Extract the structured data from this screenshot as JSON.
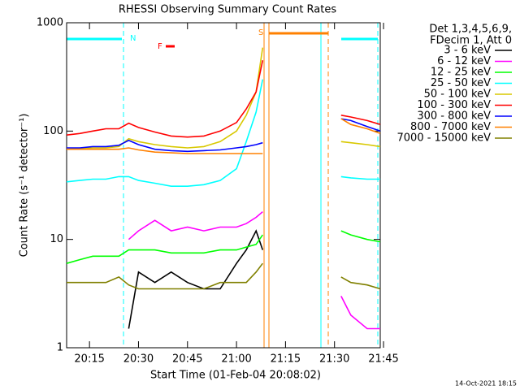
{
  "chart_data": {
    "type": "line",
    "title": "RHESSI Observing Summary Count Rates",
    "xlabel": "Start Time (01-Feb-04 20:08:02)",
    "ylabel": "Count Rate (s⁻¹ detector⁻¹)",
    "footer": "14-Oct-2021 18:15",
    "legend_title": [
      "Det 1,3,4,5,6,9,",
      "FDecim 1, Att 0"
    ],
    "annotations": [
      "N",
      "F",
      "S"
    ],
    "log_y": true,
    "xlim": [
      "20:08",
      "21:44"
    ],
    "xticks": [
      "20:15",
      "20:30",
      "20:45",
      "21:00",
      "21:15",
      "21:30",
      "21:45"
    ],
    "ylim": [
      1,
      1000
    ],
    "yticks": [
      1,
      10,
      100,
      1000
    ],
    "x": [
      "20:08",
      "20:12",
      "20:16",
      "20:20",
      "20:24",
      "20:27",
      "20:30",
      "20:35",
      "20:40",
      "20:45",
      "20:50",
      "20:55",
      "21:00",
      "21:03",
      "21:06",
      "21:08",
      "21:20",
      "21:32",
      "21:35",
      "21:40",
      "21:44"
    ],
    "series": [
      {
        "name": "3 - 6 keV",
        "color": "#000000",
        "values": [
          null,
          null,
          null,
          null,
          null,
          1.5,
          5,
          4,
          5,
          4,
          3.5,
          3.5,
          6,
          8,
          12,
          8,
          null,
          null,
          null,
          null,
          null
        ]
      },
      {
        "name": "6 - 12 keV",
        "color": "#ff00ff",
        "values": [
          null,
          null,
          null,
          null,
          null,
          10,
          12,
          15,
          12,
          13,
          12,
          13,
          13,
          14,
          16,
          18,
          null,
          3,
          2,
          1.5,
          1.5
        ]
      },
      {
        "name": "12 - 25 keV",
        "color": "#00ff00",
        "values": [
          6,
          6.5,
          7,
          7,
          7,
          8,
          8,
          8,
          7.5,
          7.5,
          7.5,
          8,
          8,
          8.5,
          9,
          11,
          null,
          12,
          11,
          10,
          9.5
        ]
      },
      {
        "name": "25 - 50 keV",
        "color": "#00ffff",
        "values": [
          34,
          35,
          36,
          36,
          38,
          38,
          35,
          33,
          31,
          31,
          32,
          35,
          45,
          80,
          150,
          300,
          null,
          38,
          37,
          36,
          36
        ]
      },
      {
        "name": "50 - 100 keV",
        "color": "#d8c800",
        "values": [
          68,
          69,
          70,
          70,
          72,
          85,
          80,
          75,
          72,
          70,
          72,
          80,
          100,
          140,
          230,
          590,
          null,
          80,
          78,
          75,
          72
        ]
      },
      {
        "name": "100 - 300 keV",
        "color": "#ff0000",
        "values": [
          92,
          95,
          100,
          105,
          105,
          118,
          108,
          98,
          90,
          88,
          90,
          100,
          120,
          160,
          230,
          450,
          null,
          140,
          135,
          125,
          115
        ]
      },
      {
        "name": "300 - 800 keV",
        "color": "#0000ff",
        "values": [
          70,
          70,
          72,
          72,
          74,
          82,
          75,
          68,
          66,
          65,
          66,
          67,
          70,
          72,
          75,
          78,
          null,
          130,
          125,
          110,
          100
        ]
      },
      {
        "name": "800 - 7000 keV",
        "color": "#ff8000",
        "values": [
          68,
          68,
          68,
          68,
          68,
          70,
          67,
          64,
          63,
          62,
          62,
          62,
          62,
          62,
          62,
          62,
          null,
          130,
          115,
          105,
          95
        ]
      },
      {
        "name": "7000 - 15000 keV",
        "color": "#808000",
        "values": [
          4,
          4,
          4,
          4,
          4.5,
          3.8,
          3.5,
          3.5,
          3.5,
          3.5,
          3.5,
          4,
          4,
          4,
          5,
          6,
          null,
          4.5,
          4,
          3.8,
          3.5
        ]
      }
    ]
  }
}
